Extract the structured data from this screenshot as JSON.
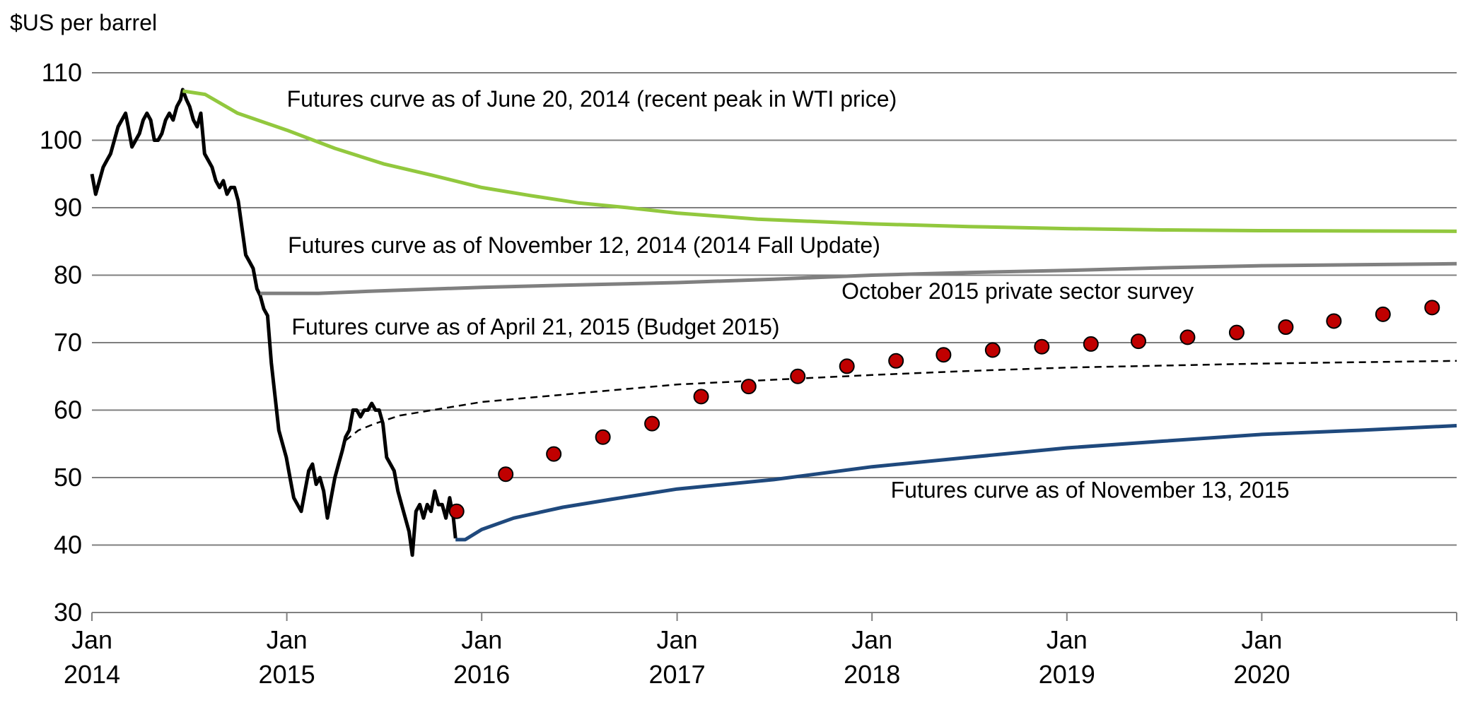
{
  "chart_data": {
    "type": "line",
    "ylabel": "$US per barrel",
    "ylim": [
      30,
      110
    ],
    "yticks": [
      30,
      40,
      50,
      60,
      70,
      80,
      90,
      100,
      110
    ],
    "xlim": [
      "2014-01-01",
      "2020-12-31"
    ],
    "xticks": [
      {
        "date": "2014-01-01",
        "line1": "Jan",
        "line2": "2014"
      },
      {
        "date": "2015-01-01",
        "line1": "Jan",
        "line2": "2015"
      },
      {
        "date": "2016-01-01",
        "line1": "Jan",
        "line2": "2016"
      },
      {
        "date": "2017-01-01",
        "line1": "Jan",
        "line2": "2017"
      },
      {
        "date": "2018-01-01",
        "line1": "Jan",
        "line2": "2018"
      },
      {
        "date": "2019-01-01",
        "line1": "Jan",
        "line2": "2019"
      },
      {
        "date": "2020-01-01",
        "line1": "Jan",
        "line2": "2020"
      }
    ],
    "grid": "horizontal",
    "series": [
      {
        "key": "wti",
        "style": "solid",
        "color": "#000000",
        "points": [
          [
            "2014-01-01",
            95
          ],
          [
            "2014-01-08",
            92
          ],
          [
            "2014-01-15",
            94
          ],
          [
            "2014-01-22",
            96
          ],
          [
            "2014-01-29",
            97
          ],
          [
            "2014-02-05",
            98
          ],
          [
            "2014-02-12",
            100
          ],
          [
            "2014-02-19",
            102
          ],
          [
            "2014-02-26",
            103
          ],
          [
            "2014-03-05",
            104
          ],
          [
            "2014-03-10",
            102
          ],
          [
            "2014-03-17",
            99
          ],
          [
            "2014-03-24",
            100
          ],
          [
            "2014-03-31",
            101
          ],
          [
            "2014-04-07",
            103
          ],
          [
            "2014-04-14",
            104
          ],
          [
            "2014-04-21",
            103
          ],
          [
            "2014-04-28",
            100
          ],
          [
            "2014-05-05",
            100
          ],
          [
            "2014-05-12",
            101
          ],
          [
            "2014-05-19",
            103
          ],
          [
            "2014-05-26",
            104
          ],
          [
            "2014-06-02",
            103
          ],
          [
            "2014-06-09",
            105
          ],
          [
            "2014-06-16",
            106
          ],
          [
            "2014-06-20",
            107.5
          ],
          [
            "2014-06-27",
            106
          ],
          [
            "2014-07-03",
            105
          ],
          [
            "2014-07-10",
            103
          ],
          [
            "2014-07-17",
            102
          ],
          [
            "2014-07-24",
            104
          ],
          [
            "2014-07-31",
            98
          ],
          [
            "2014-08-07",
            97
          ],
          [
            "2014-08-14",
            96
          ],
          [
            "2014-08-21",
            94
          ],
          [
            "2014-08-28",
            93
          ],
          [
            "2014-09-04",
            94
          ],
          [
            "2014-09-11",
            92
          ],
          [
            "2014-09-18",
            93
          ],
          [
            "2014-09-25",
            93
          ],
          [
            "2014-10-02",
            91
          ],
          [
            "2014-10-09",
            87
          ],
          [
            "2014-10-16",
            83
          ],
          [
            "2014-10-23",
            82
          ],
          [
            "2014-10-30",
            81
          ],
          [
            "2014-11-06",
            78
          ],
          [
            "2014-11-12",
            77
          ],
          [
            "2014-11-19",
            75
          ],
          [
            "2014-11-26",
            74
          ],
          [
            "2014-12-03",
            67
          ],
          [
            "2014-12-10",
            62
          ],
          [
            "2014-12-17",
            57
          ],
          [
            "2014-12-24",
            55
          ],
          [
            "2014-12-31",
            53
          ],
          [
            "2015-01-07",
            50
          ],
          [
            "2015-01-14",
            47
          ],
          [
            "2015-01-21",
            46
          ],
          [
            "2015-01-28",
            45
          ],
          [
            "2015-02-04",
            48
          ],
          [
            "2015-02-11",
            51
          ],
          [
            "2015-02-18",
            52
          ],
          [
            "2015-02-25",
            49
          ],
          [
            "2015-03-04",
            50
          ],
          [
            "2015-03-11",
            48
          ],
          [
            "2015-03-18",
            44
          ],
          [
            "2015-03-25",
            47
          ],
          [
            "2015-04-01",
            50
          ],
          [
            "2015-04-08",
            52
          ],
          [
            "2015-04-15",
            54
          ],
          [
            "2015-04-21",
            56
          ],
          [
            "2015-04-28",
            57
          ],
          [
            "2015-05-05",
            60
          ],
          [
            "2015-05-12",
            60
          ],
          [
            "2015-05-19",
            59
          ],
          [
            "2015-05-26",
            60
          ],
          [
            "2015-06-02",
            60
          ],
          [
            "2015-06-09",
            61
          ],
          [
            "2015-06-16",
            60
          ],
          [
            "2015-06-23",
            60
          ],
          [
            "2015-06-30",
            58
          ],
          [
            "2015-07-07",
            53
          ],
          [
            "2015-07-14",
            52
          ],
          [
            "2015-07-21",
            51
          ],
          [
            "2015-07-28",
            48
          ],
          [
            "2015-08-04",
            46
          ],
          [
            "2015-08-11",
            44
          ],
          [
            "2015-08-18",
            42
          ],
          [
            "2015-08-24",
            38.5
          ],
          [
            "2015-08-31",
            45
          ],
          [
            "2015-09-07",
            46
          ],
          [
            "2015-09-14",
            44
          ],
          [
            "2015-09-21",
            46
          ],
          [
            "2015-09-28",
            45
          ],
          [
            "2015-10-05",
            48
          ],
          [
            "2015-10-12",
            46
          ],
          [
            "2015-10-19",
            46
          ],
          [
            "2015-10-26",
            44
          ],
          [
            "2015-11-02",
            47
          ],
          [
            "2015-11-09",
            44
          ],
          [
            "2015-11-13",
            41
          ]
        ]
      },
      {
        "key": "jun2014",
        "style": "solid",
        "color": "#92c83e",
        "points": [
          [
            "2014-06-20",
            107.3
          ],
          [
            "2014-08-01",
            106.8
          ],
          [
            "2014-10-01",
            104
          ],
          [
            "2015-01-01",
            101.5
          ],
          [
            "2015-04-01",
            98.8
          ],
          [
            "2015-07-01",
            96.5
          ],
          [
            "2015-10-01",
            94.8
          ],
          [
            "2016-01-01",
            93
          ],
          [
            "2016-04-01",
            91.8
          ],
          [
            "2016-07-01",
            90.7
          ],
          [
            "2016-10-01",
            90
          ],
          [
            "2017-01-01",
            89.2
          ],
          [
            "2017-06-01",
            88.3
          ],
          [
            "2018-01-01",
            87.6
          ],
          [
            "2018-07-01",
            87.2
          ],
          [
            "2019-01-01",
            86.9
          ],
          [
            "2019-07-01",
            86.7
          ],
          [
            "2020-01-01",
            86.6
          ],
          [
            "2020-12-31",
            86.5
          ]
        ]
      },
      {
        "key": "nov2014",
        "style": "solid",
        "color": "#808080",
        "points": [
          [
            "2014-11-12",
            77.3
          ],
          [
            "2015-03-01",
            77.3
          ],
          [
            "2015-06-01",
            77.6
          ],
          [
            "2016-01-01",
            78.2
          ],
          [
            "2016-06-01",
            78.5
          ],
          [
            "2017-01-01",
            78.9
          ],
          [
            "2017-07-01",
            79.4
          ],
          [
            "2018-01-01",
            80
          ],
          [
            "2018-07-01",
            80.4
          ],
          [
            "2019-01-01",
            80.7
          ],
          [
            "2019-07-01",
            81.1
          ],
          [
            "2020-01-01",
            81.4
          ],
          [
            "2020-12-31",
            81.7
          ]
        ]
      },
      {
        "key": "apr2015",
        "style": "dashed",
        "color": "#000000",
        "points": [
          [
            "2015-04-21",
            55.5
          ],
          [
            "2015-05-15",
            57
          ],
          [
            "2015-06-15",
            58
          ],
          [
            "2015-08-01",
            59.2
          ],
          [
            "2015-10-01",
            60
          ],
          [
            "2016-01-01",
            61.2
          ],
          [
            "2016-07-01",
            62.5
          ],
          [
            "2017-01-01",
            63.8
          ],
          [
            "2017-07-01",
            64.5
          ],
          [
            "2018-01-01",
            65.2
          ],
          [
            "2018-07-01",
            65.8
          ],
          [
            "2019-01-01",
            66.3
          ],
          [
            "2019-07-01",
            66.6
          ],
          [
            "2020-01-01",
            66.9
          ],
          [
            "2020-12-31",
            67.3
          ]
        ]
      },
      {
        "key": "nov2015",
        "style": "solid",
        "color": "#1f497d",
        "points": [
          [
            "2015-11-13",
            40.8
          ],
          [
            "2015-12-01",
            40.8
          ],
          [
            "2016-01-01",
            42.3
          ],
          [
            "2016-03-01",
            44
          ],
          [
            "2016-06-01",
            45.6
          ],
          [
            "2016-09-01",
            46.8
          ],
          [
            "2017-01-01",
            48.3
          ],
          [
            "2017-07-01",
            49.7
          ],
          [
            "2018-01-01",
            51.6
          ],
          [
            "2018-07-01",
            53
          ],
          [
            "2019-01-01",
            54.4
          ],
          [
            "2019-07-01",
            55.4
          ],
          [
            "2020-01-01",
            56.4
          ],
          [
            "2020-07-01",
            57
          ],
          [
            "2020-12-31",
            57.7
          ]
        ]
      },
      {
        "key": "survey",
        "style": "markers",
        "color": "#c00000",
        "points": [
          [
            "2015-11-15",
            45
          ],
          [
            "2016-02-15",
            50.5
          ],
          [
            "2016-05-15",
            53.5
          ],
          [
            "2016-08-15",
            56
          ],
          [
            "2016-11-15",
            58
          ],
          [
            "2017-02-15",
            62
          ],
          [
            "2017-05-15",
            63.5
          ],
          [
            "2017-08-15",
            65
          ],
          [
            "2017-11-15",
            66.5
          ],
          [
            "2018-02-15",
            67.3
          ],
          [
            "2018-05-15",
            68.2
          ],
          [
            "2018-08-15",
            68.9
          ],
          [
            "2018-11-15",
            69.4
          ],
          [
            "2019-02-15",
            69.8
          ],
          [
            "2019-05-15",
            70.2
          ],
          [
            "2019-08-15",
            70.8
          ],
          [
            "2019-11-15",
            71.5
          ],
          [
            "2020-02-15",
            72.3
          ],
          [
            "2020-05-15",
            73.2
          ],
          [
            "2020-08-15",
            74.2
          ],
          [
            "2020-11-15",
            75.2
          ]
        ]
      }
    ],
    "annotations": [
      {
        "key": "ann-jun2014",
        "text": "Futures curve as of June 20, 2014 (recent peak in WTI price)",
        "at": [
          "2015-01-01",
          105
        ]
      },
      {
        "key": "ann-nov2014",
        "text": "Futures curve as of November 12, 2014 (2014 Fall Update)",
        "at": [
          "2015-01-03",
          83.3
        ]
      },
      {
        "key": "ann-survey",
        "text": "October 2015 private sector survey",
        "at": [
          "2017-11-05",
          76.5
        ]
      },
      {
        "key": "ann-apr2015",
        "text": "Futures curve as of April 21, 2015 (Budget 2015)",
        "at": [
          "2015-01-10",
          71.2
        ]
      },
      {
        "key": "ann-nov2015",
        "text": "Futures curve as of November 13, 2015",
        "at": [
          "2018-02-05",
          47
        ]
      }
    ]
  }
}
